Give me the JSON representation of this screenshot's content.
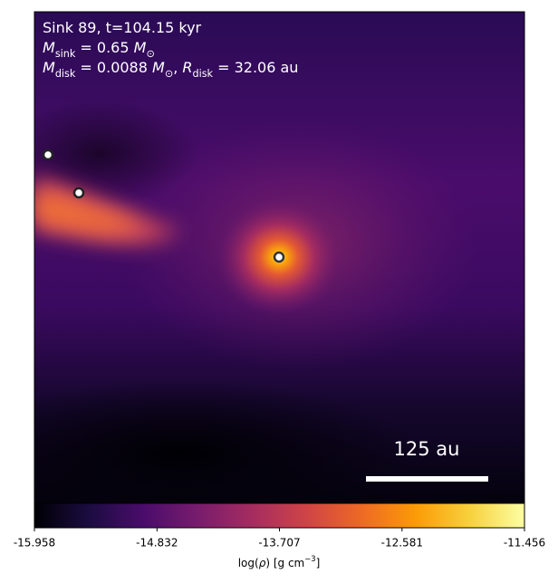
{
  "chart_data": {
    "type": "image",
    "annotations": [
      [
        {
          "text": "Sink 89, t=104.15 kyr",
          "style": "normal"
        }
      ],
      [
        {
          "text": "M",
          "style": "italic"
        },
        {
          "text": "sink",
          "style": "sub"
        },
        {
          "text": " = 0.65 ",
          "style": "normal"
        },
        {
          "text": "M",
          "style": "italic"
        },
        {
          "text": "⊙",
          "style": "sub"
        }
      ],
      [
        {
          "text": "M",
          "style": "italic"
        },
        {
          "text": "disk",
          "style": "sub"
        },
        {
          "text": " = 0.0088 ",
          "style": "normal"
        },
        {
          "text": "M",
          "style": "italic"
        },
        {
          "text": "⊙",
          "style": "sub"
        },
        {
          "text": ", ",
          "style": "normal"
        },
        {
          "text": "R",
          "style": "italic"
        },
        {
          "text": "disk",
          "style": "sub"
        },
        {
          "text": " = 32.06 au",
          "style": "normal"
        }
      ]
    ],
    "scale_bar": "125 au",
    "colorbar": {
      "cmap": "inferno",
      "clim": [
        -15.958,
        -11.456
      ],
      "ticks": [
        -15.958,
        -14.832,
        -13.707,
        -12.581,
        -11.456
      ],
      "label": [
        {
          "text": "log(",
          "style": "normal"
        },
        {
          "text": "ρ",
          "style": "italic"
        },
        {
          "text": ") [g cm",
          "style": "normal"
        },
        {
          "text": "−3",
          "style": "sup"
        },
        {
          "text": "]",
          "style": "normal"
        }
      ]
    }
  }
}
